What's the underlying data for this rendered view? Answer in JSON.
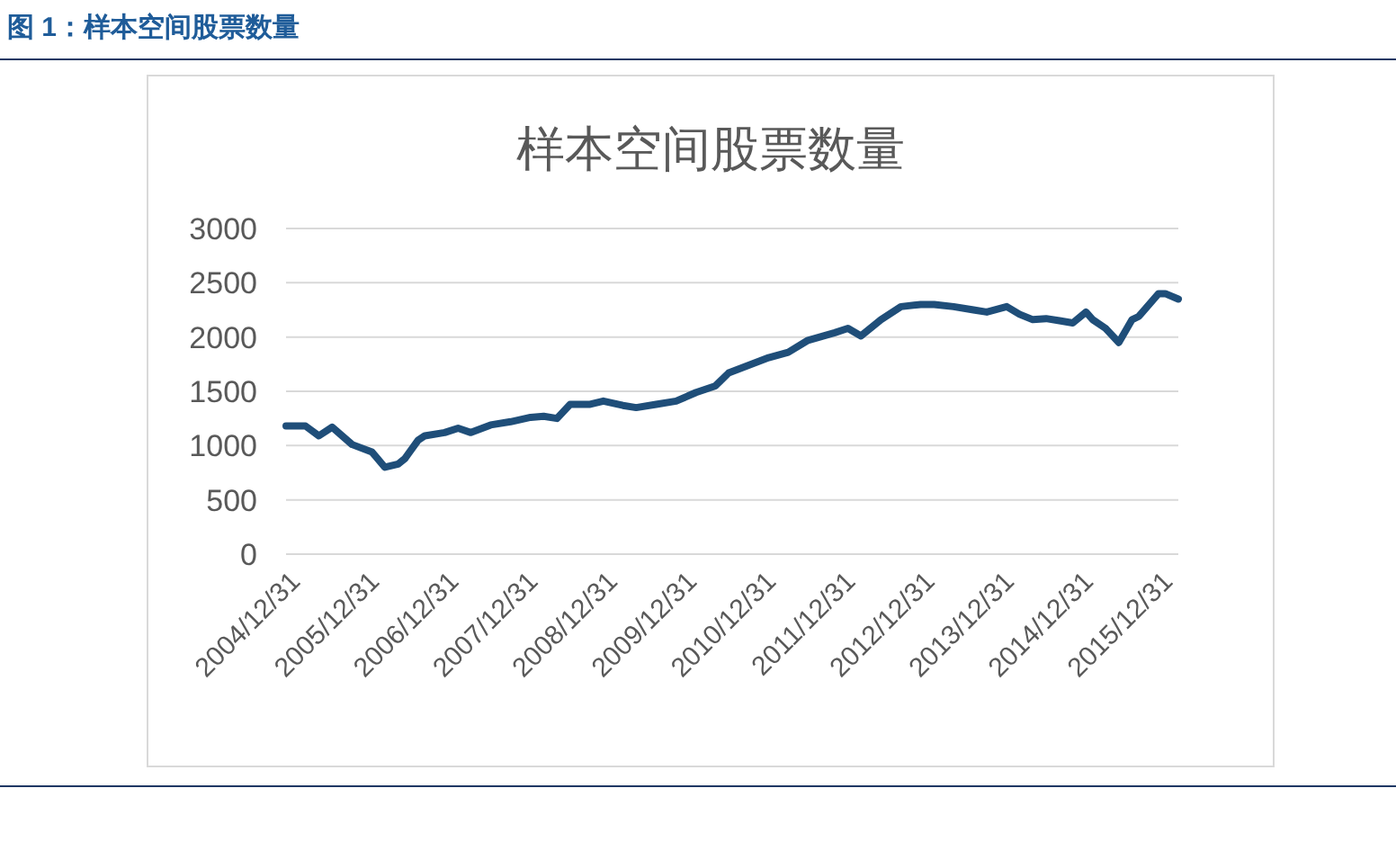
{
  "chart_data": {
    "type": "line",
    "title": "样本空间股票数量",
    "annotations": [
      "图 1：样本空间股票数量"
    ],
    "x": [
      "2004-12",
      "2005-03",
      "2005-05",
      "2005-07",
      "2005-10",
      "2006-01",
      "2006-03",
      "2006-05",
      "2006-06",
      "2006-08",
      "2006-09",
      "2006-12",
      "2007-02",
      "2007-04",
      "2007-07",
      "2007-10",
      "2008-01",
      "2008-03",
      "2008-05",
      "2008-07",
      "2008-10",
      "2008-12",
      "2009-03",
      "2009-05",
      "2009-08",
      "2009-11",
      "2010-02",
      "2010-05",
      "2010-07",
      "2010-10",
      "2011-01",
      "2011-04",
      "2011-07",
      "2011-11",
      "2012-01",
      "2012-03",
      "2012-06",
      "2012-09",
      "2012-12",
      "2013-02",
      "2013-05",
      "2013-08",
      "2013-10",
      "2014-01",
      "2014-03",
      "2014-05",
      "2014-07",
      "2014-09",
      "2014-11",
      "2015-01",
      "2015-02",
      "2015-04",
      "2015-06",
      "2015-08",
      "2015-09",
      "2015-12",
      "2016-01",
      "2016-03"
    ],
    "series": [
      {
        "color": "#1f4e79",
        "values": [
          1180,
          1180,
          1090,
          1170,
          1010,
          940,
          800,
          830,
          880,
          1050,
          1090,
          1120,
          1160,
          1120,
          1190,
          1220,
          1260,
          1270,
          1250,
          1380,
          1380,
          1410,
          1370,
          1350,
          1380,
          1410,
          1490,
          1550,
          1670,
          1740,
          1810,
          1860,
          1970,
          2040,
          2080,
          2010,
          2160,
          2280,
          2300,
          2300,
          2280,
          2250,
          2230,
          2280,
          2210,
          2160,
          2170,
          2150,
          2130,
          2230,
          2160,
          2080,
          1950,
          2160,
          2190,
          2400,
          2400,
          2350
        ]
      }
    ],
    "xlim": [
      "2004-12",
      "2016-03"
    ],
    "xticks": [
      {
        "value": "2004-12-31",
        "label": "2004/12/31"
      },
      {
        "value": "2005-12-31",
        "label": "2005/12/31"
      },
      {
        "value": "2006-12-31",
        "label": "2006/12/31"
      },
      {
        "value": "2007-12-31",
        "label": "2007/12/31"
      },
      {
        "value": "2008-12-31",
        "label": "2008/12/31"
      },
      {
        "value": "2009-12-31",
        "label": "2009/12/31"
      },
      {
        "value": "2010-12-31",
        "label": "2010/12/31"
      },
      {
        "value": "2011-12-31",
        "label": "2011/12/31"
      },
      {
        "value": "2012-12-31",
        "label": "2012/12/31"
      },
      {
        "value": "2013-12-31",
        "label": "2013/12/31"
      },
      {
        "value": "2014-12-31",
        "label": "2014/12/31"
      },
      {
        "value": "2015-12-31",
        "label": "2015/12/31"
      }
    ],
    "ylim": [
      0,
      3000
    ],
    "yticks": [
      0,
      500,
      1000,
      1500,
      2000,
      2500,
      3000
    ],
    "grid": "y",
    "marker": "none",
    "line_style": "solid"
  }
}
